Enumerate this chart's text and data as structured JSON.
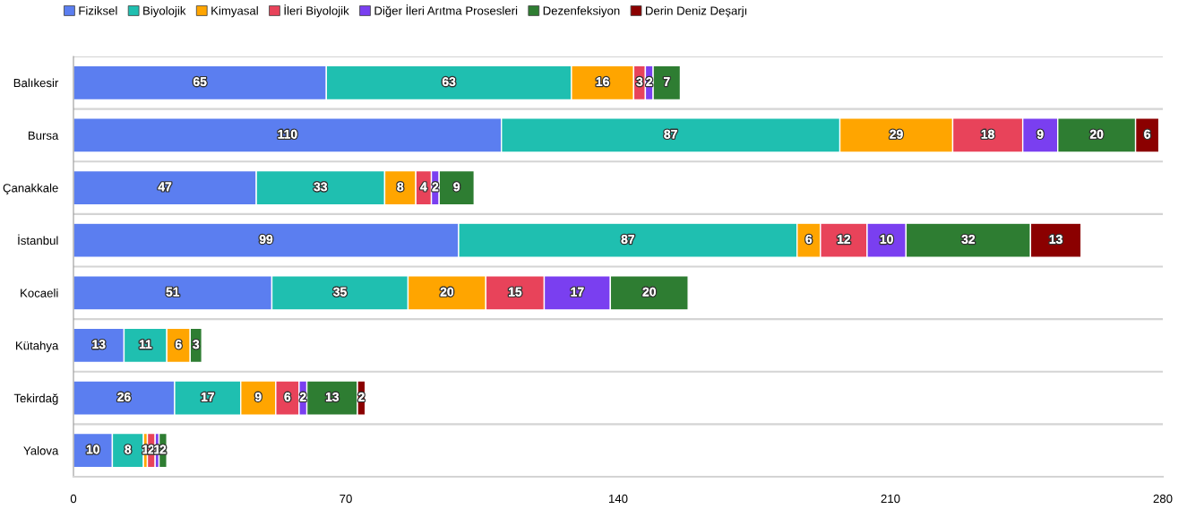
{
  "chart_data": {
    "type": "bar",
    "orientation": "horizontal",
    "stacked": true,
    "categories": [
      "Balıkesir",
      "Bursa",
      "Çanakkale",
      "İstanbul",
      "Kocaeli",
      "Kütahya",
      "Tekirdağ",
      "Yalova"
    ],
    "series": [
      {
        "name": "Fiziksel",
        "color": "#5b7ef0",
        "values": [
          65,
          110,
          47,
          99,
          51,
          13,
          26,
          10
        ]
      },
      {
        "name": "Biyolojik",
        "color": "#1fbfb0",
        "values": [
          63,
          87,
          33,
          87,
          35,
          11,
          17,
          8
        ]
      },
      {
        "name": "Kimyasal",
        "color": "#ffa500",
        "values": [
          16,
          29,
          8,
          6,
          20,
          6,
          9,
          1
        ]
      },
      {
        "name": "İleri Biyolojik",
        "color": "#e8435a",
        "values": [
          3,
          18,
          4,
          12,
          15,
          null,
          6,
          2
        ]
      },
      {
        "name": "Diğer İleri Arıtma Prosesleri",
        "color": "#7a3ff0",
        "values": [
          2,
          9,
          2,
          10,
          17,
          null,
          2,
          1
        ]
      },
      {
        "name": "Dezenfeksiyon",
        "color": "#2e7d32",
        "values": [
          7,
          20,
          9,
          32,
          20,
          3,
          13,
          2
        ]
      },
      {
        "name": "Derin Deniz Deşarjı",
        "color": "#8b0000",
        "values": [
          null,
          6,
          null,
          13,
          null,
          null,
          2,
          null
        ]
      }
    ],
    "xlim": [
      0,
      280
    ],
    "xticks": [
      0,
      70,
      140,
      210,
      280
    ],
    "grid": "y",
    "legend": "top left",
    "data_labels": true
  }
}
